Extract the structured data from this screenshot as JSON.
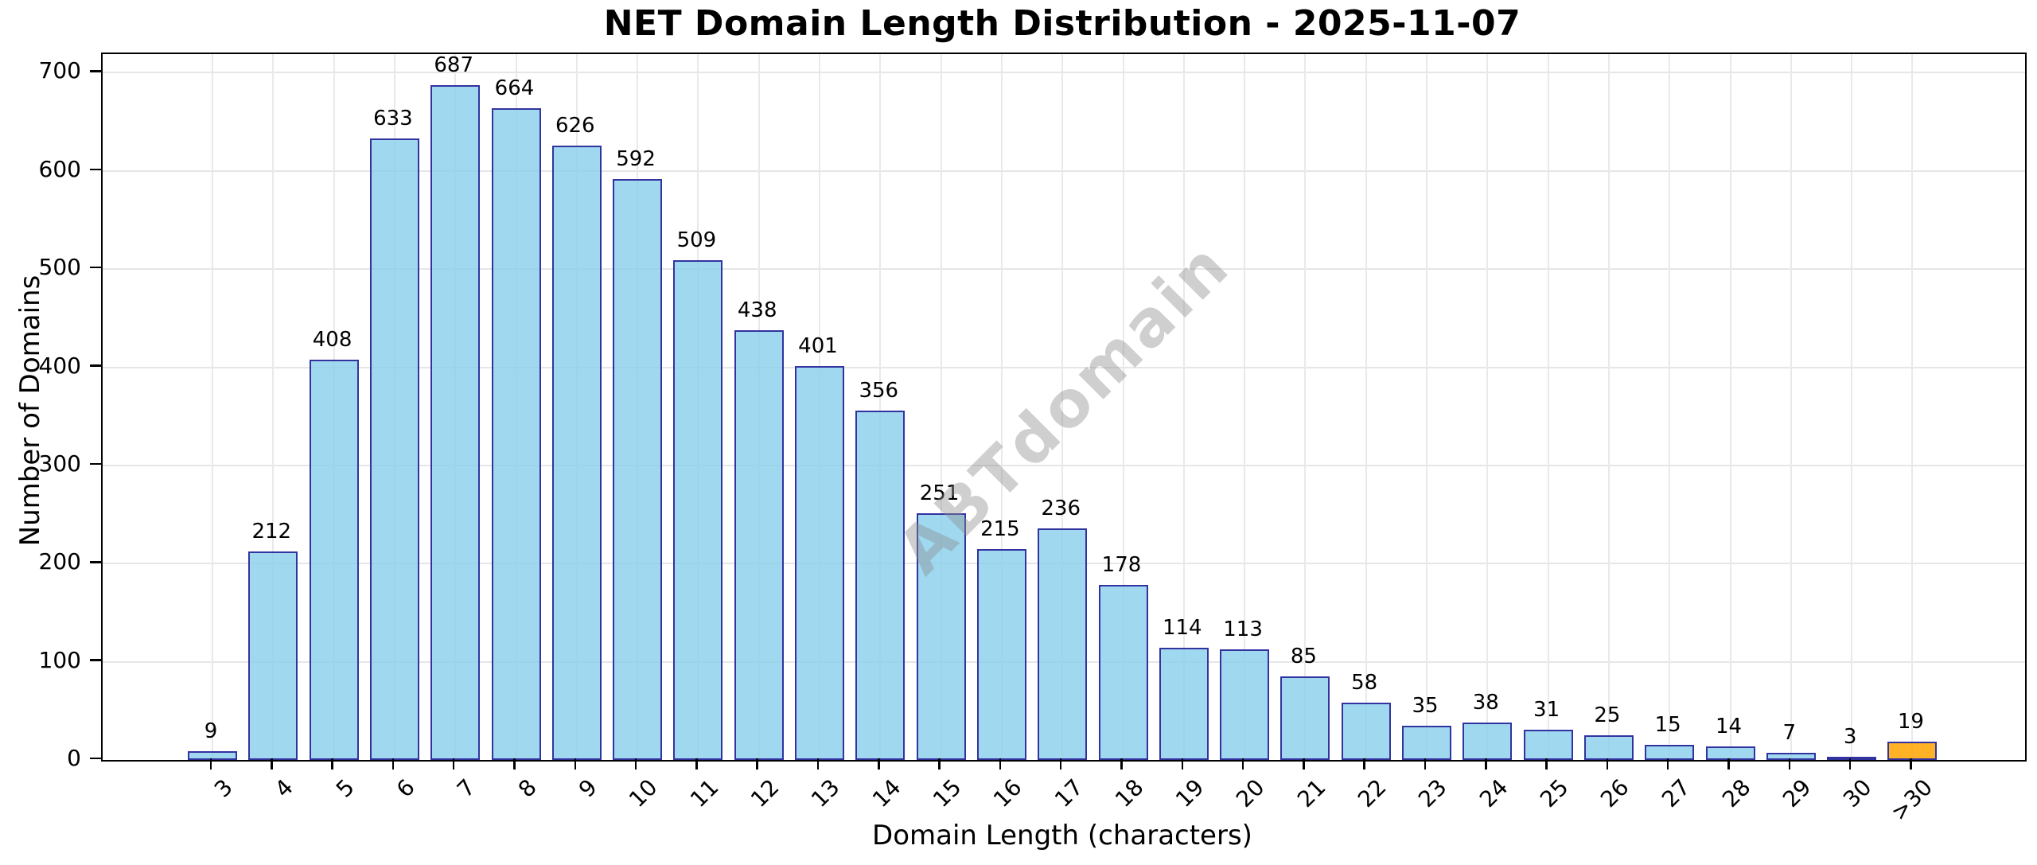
{
  "title": "NET Domain Length Distribution - 2025-11-07",
  "watermark": "ABTdomain",
  "chart_data": {
    "type": "bar",
    "title": "NET Domain Length Distribution - 2025-11-07",
    "xlabel": "Domain Length (characters)",
    "ylabel": "Number of Domains",
    "categories": [
      "3",
      "4",
      "5",
      "6",
      "7",
      "8",
      "9",
      "10",
      "11",
      "12",
      "13",
      "14",
      "15",
      "16",
      "17",
      "18",
      "19",
      "20",
      "21",
      "22",
      "23",
      "24",
      "25",
      "26",
      "27",
      "28",
      "29",
      "30",
      ">30"
    ],
    "values": [
      9,
      212,
      408,
      633,
      687,
      664,
      626,
      592,
      509,
      438,
      401,
      356,
      251,
      215,
      236,
      178,
      114,
      113,
      85,
      58,
      35,
      38,
      31,
      25,
      15,
      14,
      7,
      3,
      19
    ],
    "value_labels": true,
    "yticks": [
      0,
      100,
      200,
      300,
      400,
      500,
      600,
      700
    ],
    "ylim": [
      0,
      719
    ],
    "grid": true,
    "legend_position": "none",
    "bar_color": "#87CEEB",
    "bar_alpha": 0.8,
    "bar_edge_color": "#000080",
    "highlight_last_bar_color": "#FFA500",
    "grid_color": "#E6E6E6"
  }
}
